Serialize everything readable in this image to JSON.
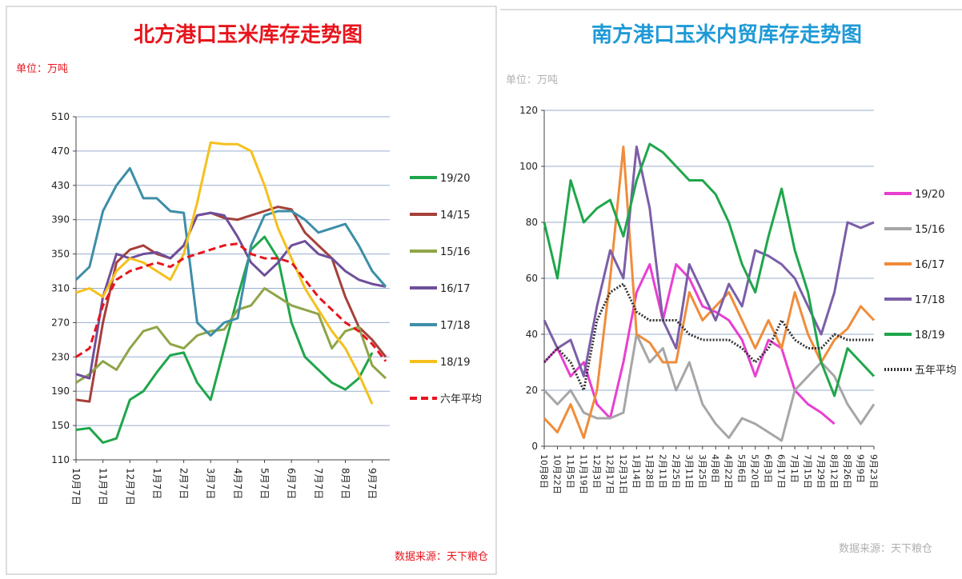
{
  "chart_data": [
    {
      "type": "line",
      "title": "北方港口玉米库存走势图",
      "unit": "单位：万吨",
      "source": "数据来源：天下粮仓",
      "title_color": "#e8141c",
      "unit_color": "#e8141c",
      "source_color": "#e8141c",
      "categories": [
        "10月7日",
        null,
        "11月7日",
        null,
        "12月7日",
        null,
        "1月7日",
        null,
        "2月7日",
        null,
        "3月7日",
        null,
        "4月7日",
        null,
        "5月7日",
        null,
        "6月7日",
        null,
        "7月7日",
        null,
        "8月7日",
        null,
        "9月7日",
        null
      ],
      "ylim": [
        110,
        510
      ],
      "yticks": [
        110,
        150,
        190,
        230,
        270,
        310,
        350,
        390,
        430,
        470,
        510
      ],
      "grid": true,
      "series": [
        {
          "name": "19/20",
          "color": "#1fa64b",
          "style": "solid",
          "values": [
            145,
            147,
            130,
            135,
            180,
            190,
            212,
            232,
            235,
            200,
            180,
            240,
            300,
            355,
            370,
            345,
            270,
            230,
            215,
            200,
            192,
            205,
            235,
            null
          ]
        },
        {
          "name": "14/15",
          "color": "#a6403a",
          "style": "solid",
          "values": [
            180,
            178,
            270,
            340,
            355,
            360,
            350,
            345,
            360,
            395,
            398,
            392,
            390,
            395,
            400,
            405,
            402,
            375,
            360,
            345,
            300,
            265,
            250,
            230
          ]
        },
        {
          "name": "15/16",
          "color": "#8fa548",
          "style": "solid",
          "values": [
            200,
            210,
            225,
            215,
            240,
            260,
            265,
            245,
            240,
            255,
            260,
            262,
            285,
            290,
            310,
            300,
            290,
            285,
            280,
            240,
            260,
            265,
            220,
            205
          ]
        },
        {
          "name": "16/17",
          "color": "#6e4f9a",
          "style": "solid",
          "values": [
            210,
            205,
            300,
            350,
            345,
            350,
            352,
            345,
            360,
            395,
            398,
            395,
            370,
            340,
            325,
            340,
            360,
            365,
            350,
            345,
            330,
            320,
            315,
            312
          ]
        },
        {
          "name": "17/18",
          "color": "#3d8ea8",
          "style": "solid",
          "values": [
            320,
            335,
            400,
            430,
            450,
            415,
            415,
            400,
            398,
            270,
            255,
            270,
            275,
            360,
            395,
            400,
            400,
            390,
            375,
            380,
            385,
            360,
            330,
            312
          ]
        },
        {
          "name": "18/19",
          "color": "#f5c01e",
          "style": "solid",
          "values": [
            305,
            310,
            300,
            330,
            345,
            340,
            330,
            320,
            350,
            410,
            480,
            478,
            478,
            470,
            430,
            380,
            345,
            310,
            285,
            260,
            240,
            210,
            175,
            null
          ]
        },
        {
          "name": "六年平均",
          "color": "#e8141c",
          "style": "dashed",
          "values": [
            230,
            240,
            290,
            320,
            330,
            335,
            340,
            335,
            345,
            350,
            355,
            360,
            362,
            350,
            345,
            345,
            340,
            320,
            300,
            285,
            270,
            260,
            245,
            225
          ]
        }
      ]
    },
    {
      "type": "line",
      "title": "南方港口玉米内贸库存走势图",
      "unit": "单位：万吨",
      "source": "数据来源：天下粮仓",
      "title_color": "#1e9ad6",
      "unit_color": "#b0b0b0",
      "source_color": "#b0b0b0",
      "categories": [
        "10月8日",
        "10月22日",
        "11月5日",
        "11月19日",
        "12月3日",
        "12月17日",
        "12月31日",
        "1月14日",
        "1月28日",
        "2月11日",
        "2月25日",
        "3月11日",
        "3月25日",
        "4月8日",
        "4月22日",
        "5月6日",
        "5月20日",
        "6月3日",
        "6月17日",
        "7月1日",
        "7月15日",
        "7月29日",
        "8月12日",
        "8月26日",
        "9月9日",
        "9月23日"
      ],
      "ylim": [
        0,
        120
      ],
      "yticks": [
        0,
        20,
        40,
        60,
        80,
        100,
        120
      ],
      "grid": true,
      "series": [
        {
          "name": "19/20",
          "color": "#e83fd0",
          "style": "solid",
          "values": [
            30,
            35,
            25,
            30,
            15,
            10,
            30,
            55,
            65,
            45,
            65,
            60,
            50,
            48,
            45,
            38,
            25,
            38,
            35,
            20,
            15,
            12,
            8,
            null,
            null,
            null
          ]
        },
        {
          "name": "15/16",
          "color": "#a6a6a6",
          "style": "solid",
          "values": [
            20,
            15,
            20,
            12,
            10,
            10,
            12,
            40,
            30,
            35,
            20,
            30,
            15,
            8,
            3,
            10,
            8,
            5,
            2,
            20,
            25,
            30,
            25,
            15,
            8,
            15
          ]
        },
        {
          "name": "16/17",
          "color": "#f08c3a",
          "style": "solid",
          "values": [
            10,
            5,
            15,
            3,
            20,
            60,
            107,
            40,
            37,
            30,
            30,
            55,
            45,
            50,
            55,
            45,
            35,
            45,
            35,
            55,
            40,
            30,
            38,
            42,
            50,
            45
          ]
        },
        {
          "name": "17/18",
          "color": "#7b5ea8",
          "style": "solid",
          "values": [
            45,
            35,
            38,
            25,
            50,
            70,
            60,
            107,
            85,
            45,
            35,
            65,
            55,
            45,
            58,
            50,
            70,
            68,
            65,
            60,
            50,
            40,
            55,
            80,
            78,
            80
          ]
        },
        {
          "name": "18/19",
          "color": "#1fa64b",
          "style": "solid",
          "values": [
            80,
            60,
            95,
            80,
            85,
            88,
            75,
            95,
            108,
            105,
            100,
            95,
            95,
            90,
            80,
            65,
            55,
            75,
            92,
            70,
            55,
            30,
            18,
            35,
            30,
            25
          ]
        },
        {
          "name": "五年平均",
          "color": "#333333",
          "style": "dotted",
          "values": [
            30,
            35,
            30,
            20,
            45,
            55,
            58,
            48,
            45,
            45,
            45,
            40,
            38,
            38,
            38,
            35,
            30,
            35,
            45,
            38,
            35,
            35,
            40,
            38,
            38,
            38
          ]
        }
      ]
    }
  ]
}
